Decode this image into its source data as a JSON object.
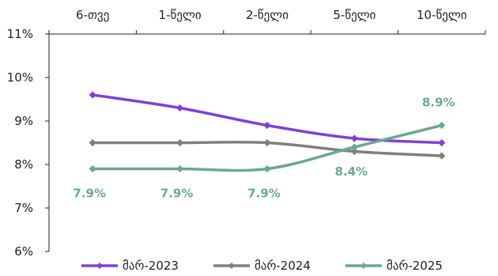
{
  "chart_data": {
    "type": "line",
    "categories": [
      "6-თვე",
      "1-წელი",
      "2-წელი",
      "5-წელი",
      "10-წელი"
    ],
    "ylim": [
      0.06,
      0.11
    ],
    "y_ticks": [
      {
        "value": 0.06,
        "label": "6%"
      },
      {
        "value": 0.07,
        "label": "7%"
      },
      {
        "value": 0.08,
        "label": "8%"
      },
      {
        "value": 0.09,
        "label": "9%"
      },
      {
        "value": 0.1,
        "label": "10%"
      },
      {
        "value": 0.11,
        "label": "11%"
      }
    ],
    "grid": false,
    "legend_position": "bottom",
    "x_axis_position": "top",
    "series": [
      {
        "name": "მარ-2023",
        "color": "#8040d6",
        "smooth": true,
        "values": [
          0.096,
          0.093,
          0.089,
          0.086,
          0.085
        ],
        "labels": [
          "",
          "",
          "",
          "",
          ""
        ]
      },
      {
        "name": "მარ-2024",
        "color": "#7f7f7f",
        "smooth": true,
        "values": [
          0.085,
          0.085,
          0.085,
          0.083,
          0.082
        ],
        "labels": [
          "",
          "",
          "",
          "",
          ""
        ]
      },
      {
        "name": "მარ-2025",
        "color": "#6aa98f",
        "smooth": true,
        "values": [
          0.079,
          0.079,
          0.079,
          0.084,
          0.089
        ],
        "labels": [
          "7.9%",
          "7.9%",
          "7.9%",
          "8.4%",
          "8.9%"
        ],
        "label_positions": [
          "below",
          "below",
          "below",
          "below",
          "above"
        ]
      }
    ]
  }
}
